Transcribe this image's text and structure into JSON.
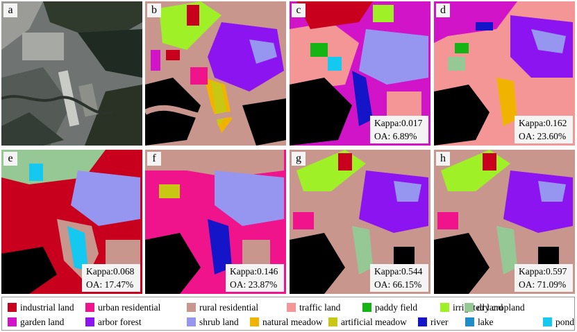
{
  "panels": [
    {
      "label": "a",
      "kappa": null,
      "oa": null
    },
    {
      "label": "b",
      "kappa": null,
      "oa": null
    },
    {
      "label": "c",
      "kappa": "Kappa:0.017",
      "oa": "OA: 6.89%"
    },
    {
      "label": "d",
      "kappa": "Kappa:0.162",
      "oa": "OA: 23.60%"
    },
    {
      "label": "e",
      "kappa": "Kappa:0.068",
      "oa": "OA: 17.47%"
    },
    {
      "label": "f",
      "kappa": "Kappa:0.146",
      "oa": "OA: 23.87%"
    },
    {
      "label": "g",
      "kappa": "Kappa:0.544",
      "oa": "OA: 66.15%"
    },
    {
      "label": "h",
      "kappa": "Kappa:0.597",
      "oa": "OA: 71.09%"
    }
  ],
  "legend": [
    {
      "label": "industrial land",
      "color": "#c8001e"
    },
    {
      "label": "urban residential",
      "color": "#f0148c"
    },
    {
      "label": "rural residential",
      "color": "#c8968c"
    },
    {
      "label": "traffic land",
      "color": "#f59696"
    },
    {
      "label": "paddy field",
      "color": "#14b414"
    },
    {
      "label": "irrigated land",
      "color": "#a0f028"
    },
    {
      "label": "dry cropland",
      "color": "#96c896"
    },
    {
      "label": "garden land",
      "color": "#d214c8"
    },
    {
      "label": "arbor forest",
      "color": "#8c14f0"
    },
    {
      "label": "shrub land",
      "color": "#9696f0"
    },
    {
      "label": "natural meadow",
      "color": "#f0b400"
    },
    {
      "label": "artificial meadow",
      "color": "#c8c814"
    },
    {
      "label": "river",
      "color": "#1414c8"
    },
    {
      "label": "lake",
      "color": "#1e8cc8"
    },
    {
      "label": "pond",
      "color": "#14c8f0"
    }
  ]
}
